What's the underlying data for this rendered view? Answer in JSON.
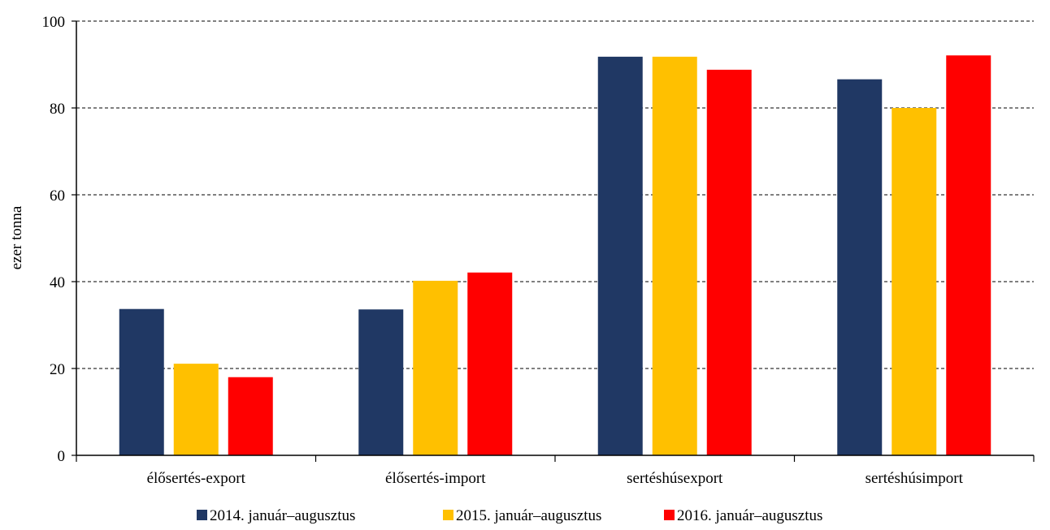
{
  "chart_data": {
    "type": "bar",
    "ylabel": "ezer tonna",
    "ylim": [
      0,
      100
    ],
    "yticks": [
      0,
      20,
      40,
      60,
      80,
      100
    ],
    "grid": true,
    "legend_position": "bottom",
    "categories": [
      "élősertés-export",
      "élősertés-import",
      "sertéshúsexport",
      "sertéshúsimport"
    ],
    "series": [
      {
        "name": "2014. január–augusztus",
        "color": "#203864",
        "values": [
          33.7,
          33.6,
          91.8,
          86.6
        ]
      },
      {
        "name": "2015. január–augusztus",
        "color": "#FFC000",
        "values": [
          21.1,
          40.2,
          91.8,
          80.0
        ]
      },
      {
        "name": "2016. január–augusztus",
        "color": "#FF0000",
        "values": [
          18.0,
          42.1,
          88.8,
          92.1
        ]
      }
    ]
  }
}
